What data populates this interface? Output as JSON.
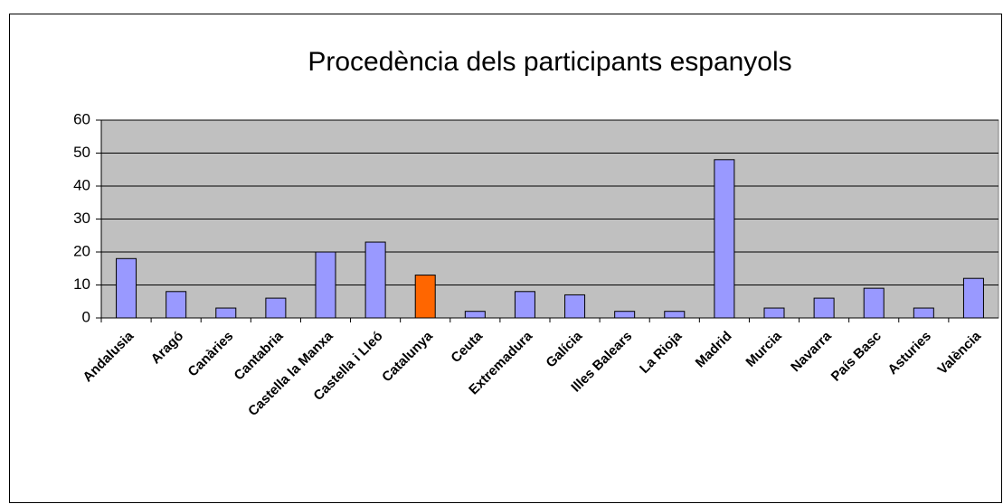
{
  "chart_data": {
    "type": "bar",
    "title": "Procedència dels participants espanyols",
    "categories": [
      "Andalusia",
      "Aragó",
      "Canàries",
      "Cantabria",
      "Castella la Manxa",
      "Castella i Lleó",
      "Catalunya",
      "Ceuta",
      "Extremadura",
      "Galícia",
      "Illes Balears",
      "La Rioja",
      "Madrid",
      "Murcia",
      "Navarra",
      "País Basc",
      "Asturies",
      "València"
    ],
    "values": [
      18,
      8,
      3,
      6,
      20,
      23,
      13,
      2,
      8,
      7,
      2,
      2,
      48,
      3,
      6,
      9,
      3,
      12
    ],
    "colors": [
      "#9999ff",
      "#9999ff",
      "#9999ff",
      "#9999ff",
      "#9999ff",
      "#9999ff",
      "#ff6600",
      "#9999ff",
      "#9999ff",
      "#9999ff",
      "#9999ff",
      "#9999ff",
      "#9999ff",
      "#9999ff",
      "#9999ff",
      "#9999ff",
      "#9999ff",
      "#9999ff"
    ],
    "ylim": [
      0,
      60
    ],
    "yticks": [
      0,
      10,
      20,
      30,
      40,
      50,
      60
    ],
    "grid": true
  }
}
